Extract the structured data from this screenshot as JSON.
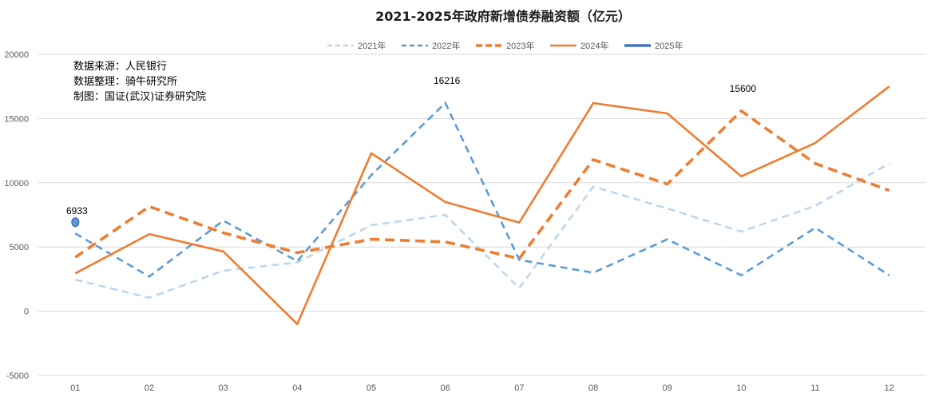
{
  "chart_data": {
    "type": "line",
    "title": "2021-2025年政府新增债券融资额（亿元）",
    "categories": [
      "01",
      "02",
      "03",
      "04",
      "05",
      "06",
      "07",
      "08",
      "09",
      "10",
      "11",
      "12"
    ],
    "ylim": [
      -5000,
      20000
    ],
    "yticks": [
      "20000",
      "15000",
      "10000",
      "5000",
      "0",
      "-5000"
    ],
    "grid": true,
    "legend_position": "top-center",
    "series": [
      {
        "name": "2021年",
        "color": "#bdd7ee",
        "dash": "dash",
        "width": "medium",
        "values": [
          2450,
          1050,
          3150,
          3800,
          6700,
          7500,
          1800,
          9700,
          8000,
          6200,
          8200,
          11500
        ]
      },
      {
        "name": "2022年",
        "color": "#5b9bd5",
        "dash": "dash",
        "width": "medium",
        "values": [
          6050,
          2700,
          7050,
          3900,
          10600,
          16216,
          4000,
          3000,
          5600,
          2800,
          6500,
          2800
        ]
      },
      {
        "name": "2023年",
        "color": "#ed7d31",
        "dash": "dash",
        "width": "thick",
        "values": [
          4200,
          8150,
          6100,
          4550,
          5600,
          5400,
          4100,
          11800,
          9900,
          15600,
          11500,
          9400
        ]
      },
      {
        "name": "2024年",
        "color": "#ed7d31",
        "dash": "solid",
        "width": "medium",
        "values": [
          2950,
          6000,
          4650,
          -1000,
          12300,
          8500,
          6900,
          16200,
          15400,
          10500,
          13100,
          17500
        ]
      },
      {
        "name": "2025年",
        "color": "#4472c4",
        "dash": "solid",
        "width": "thick",
        "values": [
          6933,
          null,
          null,
          null,
          null,
          null,
          null,
          null,
          null,
          null,
          null,
          null
        ]
      }
    ],
    "data_labels": [
      {
        "text": "6933",
        "series": "2025年",
        "category": "01",
        "value": 6933
      },
      {
        "text": "16216",
        "series": "2022年",
        "category": "06",
        "value": 16216
      },
      {
        "text": "15600",
        "series": "2023年",
        "category": "10",
        "value": 15600
      }
    ],
    "annotations": [
      "数据来源：人民银行",
      "数据整理：骑牛研究所",
      "制图：国证(武汉)证券研究院"
    ]
  }
}
